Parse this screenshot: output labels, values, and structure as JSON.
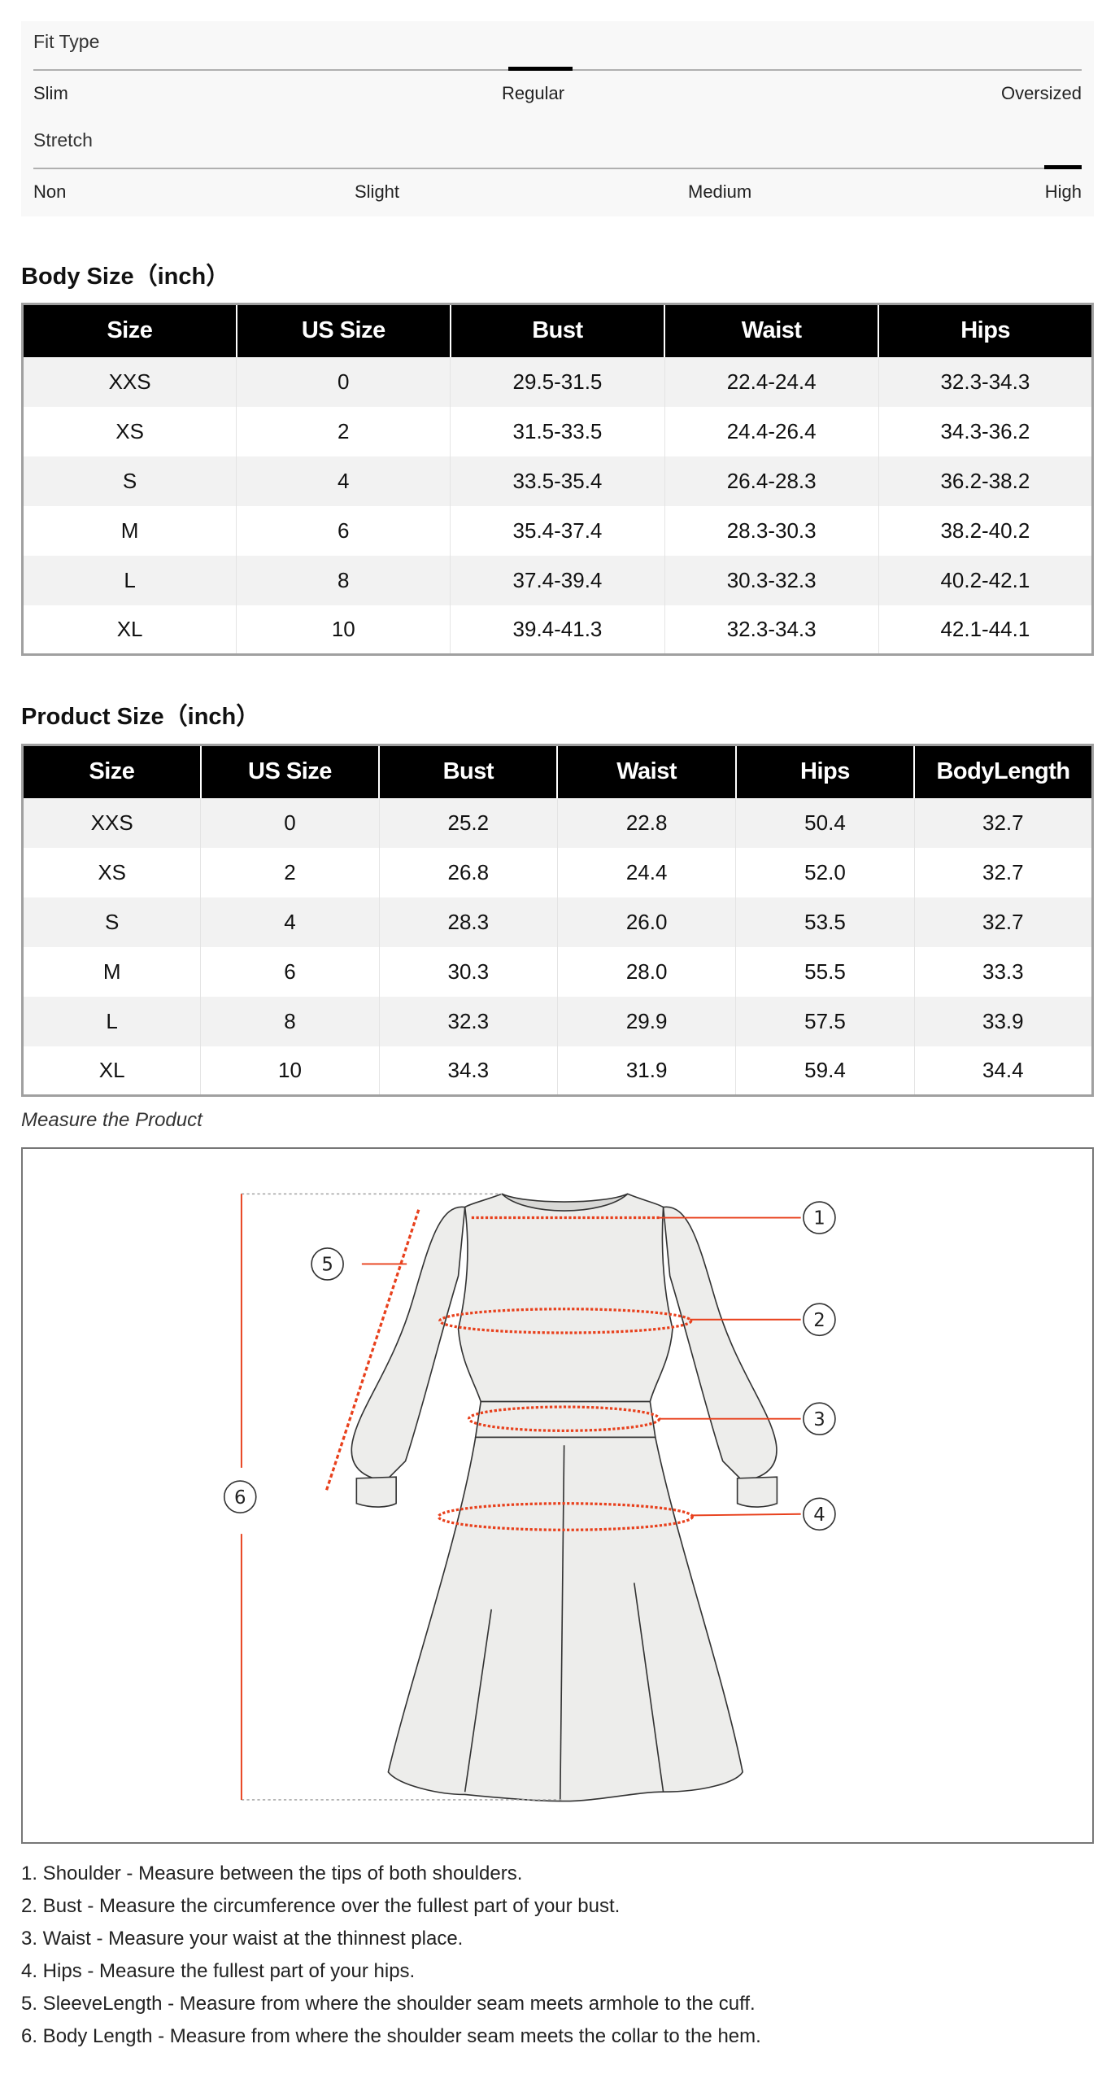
{
  "fit_type": {
    "label": "Fit Type",
    "options": [
      "Slim",
      "Regular",
      "Oversized"
    ],
    "selected": "Regular"
  },
  "stretch": {
    "label": "Stretch",
    "options": [
      "Non",
      "Slight",
      "Medium",
      "High"
    ],
    "selected": "High"
  },
  "body_size": {
    "title": "Body Size（inch）",
    "headers": [
      "Size",
      "US Size",
      "Bust",
      "Waist",
      "Hips"
    ],
    "rows": [
      [
        "XXS",
        "0",
        "29.5-31.5",
        "22.4-24.4",
        "32.3-34.3"
      ],
      [
        "XS",
        "2",
        "31.5-33.5",
        "24.4-26.4",
        "34.3-36.2"
      ],
      [
        "S",
        "4",
        "33.5-35.4",
        "26.4-28.3",
        "36.2-38.2"
      ],
      [
        "M",
        "6",
        "35.4-37.4",
        "28.3-30.3",
        "38.2-40.2"
      ],
      [
        "L",
        "8",
        "37.4-39.4",
        "30.3-32.3",
        "40.2-42.1"
      ],
      [
        "XL",
        "10",
        "39.4-41.3",
        "32.3-34.3",
        "42.1-44.1"
      ]
    ]
  },
  "product_size": {
    "title": "Product Size（inch）",
    "headers": [
      "Size",
      "US Size",
      "Bust",
      "Waist",
      "Hips",
      "BodyLength"
    ],
    "rows": [
      [
        "XXS",
        "0",
        "25.2",
        "22.8",
        "50.4",
        "32.7"
      ],
      [
        "XS",
        "2",
        "26.8",
        "24.4",
        "52.0",
        "32.7"
      ],
      [
        "S",
        "4",
        "28.3",
        "26.0",
        "53.5",
        "32.7"
      ],
      [
        "M",
        "6",
        "30.3",
        "28.0",
        "55.5",
        "33.3"
      ],
      [
        "L",
        "8",
        "32.3",
        "29.9",
        "57.5",
        "33.9"
      ],
      [
        "XL",
        "10",
        "34.3",
        "31.9",
        "59.4",
        "34.4"
      ]
    ]
  },
  "measure": {
    "caption": "Measure the Product",
    "markers": [
      "1",
      "2",
      "3",
      "4",
      "5",
      "6"
    ],
    "accent_color": "#e8401c",
    "notes": [
      "1. Shoulder - Measure between the tips of both shoulders.",
      "2. Bust - Measure the circumference over the fullest part of your bust.",
      "3. Waist - Measure your waist at the thinnest place.",
      "4. Hips - Measure the fullest part of your hips.",
      "5. SleeveLength - Measure from where the shoulder seam meets armhole to the cuff.",
      "6. Body Length - Measure from where the shoulder seam meets the collar to the hem."
    ]
  }
}
